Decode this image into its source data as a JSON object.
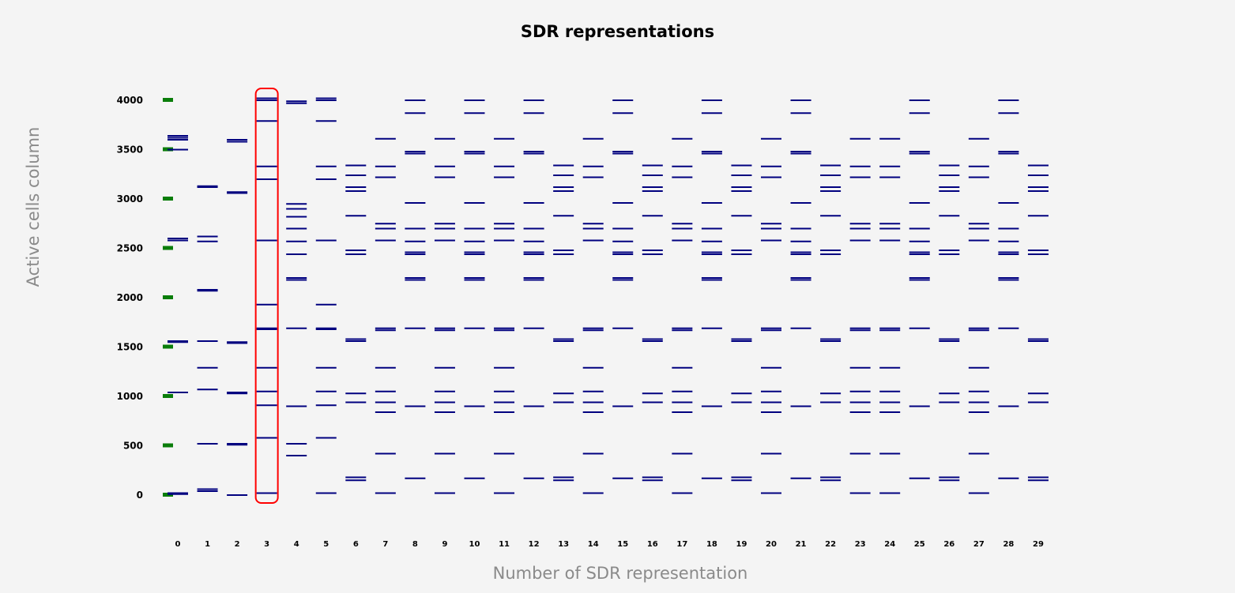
{
  "chart_data": {
    "type": "scatter",
    "title": "SDR representations",
    "xlabel": "Number of SDR representation",
    "ylabel": "Active cells column",
    "ylim": [
      -80,
      4120
    ],
    "yticks": [
      0,
      500,
      1000,
      1500,
      2000,
      2500,
      3000,
      3500,
      4000
    ],
    "categories": [
      "0",
      "1",
      "2",
      "3",
      "4",
      "5",
      "6",
      "7",
      "8",
      "9",
      "10",
      "11",
      "12",
      "13",
      "14",
      "15",
      "16",
      "17",
      "18",
      "19",
      "20",
      "21",
      "22",
      "23",
      "24",
      "25",
      "26",
      "27",
      "28",
      "29"
    ],
    "highlighted_category": "3",
    "colors": {
      "marker": "#00007f",
      "tick_marker": "#0a7d0a",
      "highlight": "#ff0000"
    },
    "columns": [
      [
        10,
        20,
        1040,
        1550,
        1560,
        2580,
        2600,
        3500,
        3600,
        3620,
        3640
      ],
      [
        40,
        60,
        520,
        1070,
        1290,
        1560,
        2070,
        2080,
        2570,
        2620,
        3120,
        3130
      ],
      [
        0,
        510,
        520,
        1030,
        1040,
        1540,
        1550,
        3060,
        3070,
        3580,
        3600
      ],
      [
        20,
        580,
        910,
        1050,
        1290,
        1680,
        1690,
        1930,
        2580,
        3200,
        3330,
        3790,
        4000,
        4020
      ],
      [
        400,
        520,
        900,
        1690,
        2180,
        2200,
        2440,
        2570,
        2700,
        2820,
        2900,
        2950,
        3970,
        3990
      ],
      [
        20,
        580,
        910,
        1050,
        1290,
        1680,
        1690,
        1930,
        2580,
        3200,
        3330,
        3790,
        4000,
        4020
      ],
      [
        150,
        180,
        940,
        1030,
        1560,
        1580,
        2440,
        2480,
        2830,
        3080,
        3120,
        3240,
        3340
      ],
      [
        20,
        420,
        840,
        940,
        1050,
        1290,
        1670,
        1690,
        2580,
        2700,
        2750,
        3220,
        3330,
        3610
      ],
      [
        170,
        900,
        1690,
        2180,
        2200,
        2440,
        2460,
        2570,
        2700,
        2960,
        3460,
        3480,
        3870,
        4000
      ],
      [
        20,
        420,
        840,
        940,
        1050,
        1290,
        1670,
        1690,
        2580,
        2700,
        2750,
        3220,
        3330,
        3610
      ],
      [
        170,
        900,
        1690,
        2180,
        2200,
        2440,
        2460,
        2570,
        2700,
        2960,
        3460,
        3480,
        3870,
        4000
      ],
      [
        20,
        420,
        840,
        940,
        1050,
        1290,
        1670,
        1690,
        2580,
        2700,
        2750,
        3220,
        3330,
        3610
      ],
      [
        170,
        900,
        1690,
        2180,
        2200,
        2440,
        2460,
        2570,
        2700,
        2960,
        3460,
        3480,
        3870,
        4000
      ],
      [
        150,
        180,
        940,
        1030,
        1560,
        1580,
        2440,
        2480,
        2830,
        3080,
        3120,
        3240,
        3340
      ],
      [
        20,
        420,
        840,
        940,
        1050,
        1290,
        1670,
        1690,
        2580,
        2700,
        2750,
        3220,
        3330,
        3610
      ],
      [
        170,
        900,
        1690,
        2180,
        2200,
        2440,
        2460,
        2570,
        2700,
        2960,
        3460,
        3480,
        3870,
        4000
      ],
      [
        150,
        180,
        940,
        1030,
        1560,
        1580,
        2440,
        2480,
        2830,
        3080,
        3120,
        3240,
        3340
      ],
      [
        20,
        420,
        840,
        940,
        1050,
        1290,
        1670,
        1690,
        2580,
        2700,
        2750,
        3220,
        3330,
        3610
      ],
      [
        170,
        900,
        1690,
        2180,
        2200,
        2440,
        2460,
        2570,
        2700,
        2960,
        3460,
        3480,
        3870,
        4000
      ],
      [
        150,
        180,
        940,
        1030,
        1560,
        1580,
        2440,
        2480,
        2830,
        3080,
        3120,
        3240,
        3340
      ],
      [
        20,
        420,
        840,
        940,
        1050,
        1290,
        1670,
        1690,
        2580,
        2700,
        2750,
        3220,
        3330,
        3610
      ],
      [
        170,
        900,
        1690,
        2180,
        2200,
        2440,
        2460,
        2570,
        2700,
        2960,
        3460,
        3480,
        3870,
        4000
      ],
      [
        150,
        180,
        940,
        1030,
        1560,
        1580,
        2440,
        2480,
        2830,
        3080,
        3120,
        3240,
        3340
      ],
      [
        20,
        420,
        840,
        940,
        1050,
        1290,
        1670,
        1690,
        2580,
        2700,
        2750,
        3220,
        3330,
        3610
      ],
      [
        20,
        420,
        840,
        940,
        1050,
        1290,
        1670,
        1690,
        2580,
        2700,
        2750,
        3220,
        3330,
        3610
      ],
      [
        170,
        900,
        1690,
        2180,
        2200,
        2440,
        2460,
        2570,
        2700,
        2960,
        3460,
        3480,
        3870,
        4000
      ],
      [
        150,
        180,
        940,
        1030,
        1560,
        1580,
        2440,
        2480,
        2830,
        3080,
        3120,
        3240,
        3340
      ],
      [
        20,
        420,
        840,
        940,
        1050,
        1290,
        1670,
        1690,
        2580,
        2700,
        2750,
        3220,
        3330,
        3610
      ],
      [
        170,
        900,
        1690,
        2180,
        2200,
        2440,
        2460,
        2570,
        2700,
        2960,
        3460,
        3480,
        3870,
        4000
      ],
      [
        150,
        180,
        940,
        1030,
        1560,
        1580,
        2440,
        2480,
        2830,
        3080,
        3120,
        3240,
        3340
      ]
    ]
  }
}
